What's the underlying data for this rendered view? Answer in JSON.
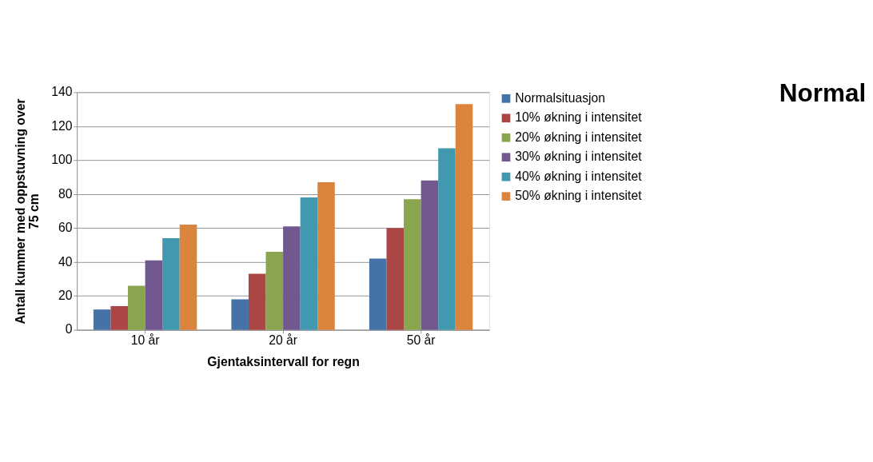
{
  "chart_data": {
    "type": "bar",
    "title": "Normal",
    "xlabel": "Gjentaksintervall for regn",
    "ylabel": "Antall kummer med oppstuvning over 75 cm",
    "categories": [
      "10 år",
      "20 år",
      "50 år"
    ],
    "series": [
      {
        "name": "Normalsituasjon",
        "color": "#4572a7",
        "values": [
          12,
          18,
          42
        ]
      },
      {
        "name": "10% økning i intensitet",
        "color": "#aa4643",
        "values": [
          14,
          33,
          60
        ]
      },
      {
        "name": "20% økning i intensitet",
        "color": "#89a54e",
        "values": [
          26,
          46,
          77
        ]
      },
      {
        "name": "30% økning i intensitet",
        "color": "#71588f",
        "values": [
          41,
          61,
          88
        ]
      },
      {
        "name": "40% økning i intensitet",
        "color": "#4198af",
        "values": [
          54,
          78,
          107
        ]
      },
      {
        "name": "50% økning i intensitet",
        "color": "#db843d",
        "values": [
          62,
          87,
          133
        ]
      }
    ],
    "ylim": [
      0,
      140
    ],
    "yticks": [
      0,
      20,
      40,
      60,
      80,
      100,
      120,
      140
    ],
    "grid": "y",
    "legend": "right"
  }
}
